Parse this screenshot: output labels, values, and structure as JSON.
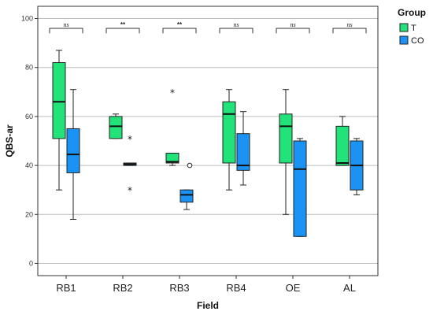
{
  "chart_data": {
    "type": "box",
    "xlabel": "Field",
    "ylabel": "QBS-ar",
    "ylim": [
      -5,
      105
    ],
    "yticks": [
      0,
      20,
      40,
      60,
      80,
      100
    ],
    "grid": "horizontal",
    "legend": {
      "title": "Group",
      "placement": "top-right",
      "items": [
        {
          "name": "T",
          "color": "#22e37a"
        },
        {
          "name": "CO",
          "color": "#1a93f5"
        }
      ]
    },
    "categories": [
      "RB1",
      "RB2",
      "RB3",
      "RB4",
      "OE",
      "AL"
    ],
    "significance": [
      "ns",
      "**",
      "**",
      "ns",
      "ns",
      "ns"
    ],
    "series": [
      {
        "name": "T",
        "color": "#22e37a",
        "boxes": [
          {
            "min": 30,
            "q1": 51,
            "median": 66,
            "q3": 82,
            "max": 87,
            "extremes": [],
            "outliers": []
          },
          {
            "min": 51,
            "q1": 51,
            "median": 56,
            "q3": 60,
            "max": 61,
            "extremes": [],
            "outliers": []
          },
          {
            "min": 40,
            "q1": 41,
            "median": 41.5,
            "q3": 45,
            "max": 45,
            "extremes": [
              70
            ],
            "outliers": []
          },
          {
            "min": 30,
            "q1": 41,
            "median": 61,
            "q3": 66,
            "max": 71,
            "extremes": [],
            "outliers": []
          },
          {
            "min": 20,
            "q1": 41,
            "median": 56,
            "q3": 61,
            "max": 71,
            "extremes": [],
            "outliers": []
          },
          {
            "min": 40,
            "q1": 40,
            "median": 41,
            "q3": 56,
            "max": 60,
            "extremes": [],
            "outliers": []
          }
        ]
      },
      {
        "name": "CO",
        "color": "#1a93f5",
        "boxes": [
          {
            "min": 18,
            "q1": 37,
            "median": 44.5,
            "q3": 55,
            "max": 71,
            "extremes": [],
            "outliers": []
          },
          {
            "min": 40,
            "q1": 40,
            "median": 40.5,
            "q3": 41,
            "max": 41,
            "extremes": [
              51,
              30
            ],
            "outliers": []
          },
          {
            "min": 22,
            "q1": 25,
            "median": 28,
            "q3": 30,
            "max": 30,
            "extremes": [],
            "outliers": [
              40
            ]
          },
          {
            "min": 32,
            "q1": 38,
            "median": 40,
            "q3": 53,
            "max": 62,
            "extremes": [],
            "outliers": []
          },
          {
            "min": 11,
            "q1": 11,
            "median": 38.5,
            "q3": 50,
            "max": 51,
            "extremes": [],
            "outliers": []
          },
          {
            "min": 28,
            "q1": 30,
            "median": 40,
            "q3": 50,
            "max": 51,
            "extremes": [],
            "outliers": []
          }
        ]
      }
    ]
  }
}
